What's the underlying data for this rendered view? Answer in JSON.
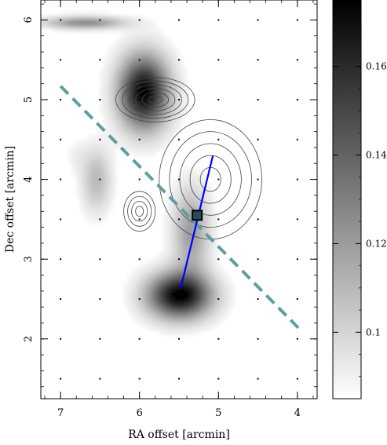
{
  "chart_data": {
    "type": "heatmap",
    "xlabel": "RA offset [arcmin]",
    "ylabel": "Dec offset [arcmin]",
    "xlim": [
      7.25,
      3.75
    ],
    "ylim": [
      1.25,
      6.25
    ],
    "x_ticks": [
      "7",
      "6",
      "5",
      "4"
    ],
    "y_ticks": [
      "2",
      "3",
      "4",
      "5",
      "6"
    ],
    "colorbar": {
      "range": [
        0.085,
        0.175
      ],
      "ticks": [
        "0.1",
        "0.12",
        "0.14",
        "0.16"
      ]
    },
    "grayscale_blobs": [
      {
        "x": 5.95,
        "y": 5.1,
        "sx": 0.22,
        "sy": 0.32,
        "peak": 0.175
      },
      {
        "x": 5.5,
        "y": 2.55,
        "sx": 0.28,
        "sy": 0.2,
        "peak": 0.175
      },
      {
        "x": 5.35,
        "y": 3.35,
        "sx": 0.16,
        "sy": 0.38,
        "peak": 0.12
      },
      {
        "x": 6.55,
        "y": 4.0,
        "sx": 0.13,
        "sy": 0.28,
        "peak": 0.11
      },
      {
        "x": 6.8,
        "y": 4.3,
        "sx": 0.1,
        "sy": 0.15,
        "peak": 0.09
      },
      {
        "x": 6.7,
        "y": 5.97,
        "sx": 0.35,
        "sy": 0.05,
        "peak": 0.13
      }
    ],
    "contours": [
      {
        "cx": 5.1,
        "cy": 4.0,
        "rx": 0.65,
        "ry": 0.75,
        "levels": 5
      },
      {
        "cx": 5.8,
        "cy": 5.0,
        "rx": 0.5,
        "ry": 0.28,
        "levels": 6
      },
      {
        "cx": 6.0,
        "cy": 3.6,
        "rx": 0.2,
        "ry": 0.25,
        "levels": 4
      }
    ],
    "dashed_line": {
      "from": [
        7.0,
        5.17
      ],
      "to": [
        3.98,
        2.13
      ],
      "color": "#5f9ea0"
    },
    "blue_line": {
      "from": [
        5.48,
        2.63
      ],
      "to": [
        5.07,
        4.3
      ],
      "color": "#0000ff"
    },
    "marker": {
      "x": 5.27,
      "y": 3.55,
      "shape": "square"
    }
  }
}
